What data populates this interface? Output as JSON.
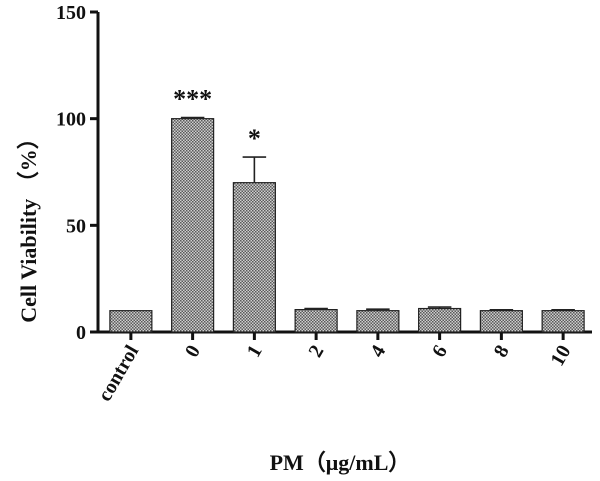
{
  "chart_data": {
    "type": "bar",
    "xlabel": "PM（μg/mL）",
    "ylabel": "Cell Viability （%）",
    "ylim": [
      0,
      150
    ],
    "yticks": [
      0,
      50,
      100,
      150
    ],
    "categories": [
      "control",
      "0",
      "1",
      "2",
      "4",
      "6",
      "8",
      "10"
    ],
    "values": [
      10,
      100,
      70,
      10.5,
      10,
      11,
      10,
      10
    ],
    "errors": [
      0,
      0.5,
      12,
      0.5,
      0.7,
      0.7,
      0.4,
      0.4
    ],
    "annotations": [
      "",
      "***",
      "*",
      "",
      "",
      "",
      "",
      ""
    ],
    "bar_fill": "#b5b5b5",
    "bar_edge": "#222222"
  }
}
